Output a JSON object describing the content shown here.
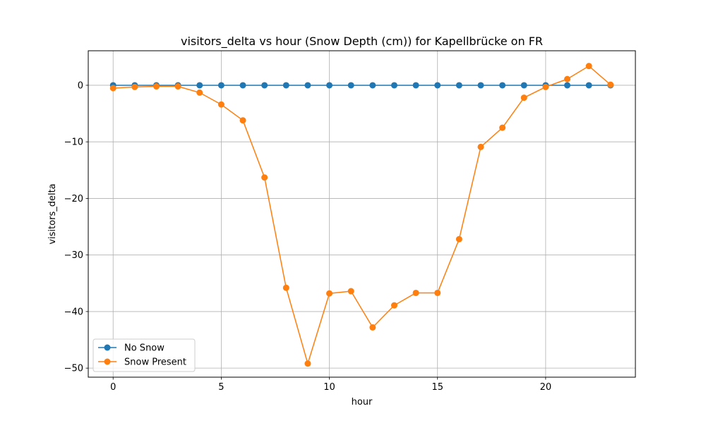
{
  "chart_data": {
    "type": "line",
    "title": "visitors_delta vs hour (Snow Depth (cm)) for Kapellbrücke on FR",
    "xlabel": "hour",
    "ylabel": "visitors_delta",
    "xlim": [
      -1.15,
      24.15
    ],
    "ylim": [
      -51.6,
      6.1
    ],
    "xticks": [
      0,
      5,
      10,
      15,
      20
    ],
    "yticks": [
      0,
      -10,
      -20,
      -30,
      -40,
      -50
    ],
    "xtick_labels": [
      "0",
      "5",
      "10",
      "15",
      "20"
    ],
    "ytick_labels": [
      "0",
      "−10",
      "−20",
      "−30",
      "−40",
      "−50"
    ],
    "grid": true,
    "legend_position": "lower-left",
    "x": [
      0,
      1,
      2,
      3,
      4,
      5,
      6,
      7,
      8,
      9,
      10,
      11,
      12,
      13,
      14,
      15,
      16,
      17,
      18,
      19,
      20,
      21,
      22,
      23
    ],
    "series": [
      {
        "name": "No Snow",
        "color": "#1f77b4",
        "marker": "circle",
        "values": [
          0,
          0,
          0,
          0,
          0,
          0,
          0,
          0,
          0,
          0,
          0,
          0,
          0,
          0,
          0,
          0,
          0,
          0,
          0,
          0,
          0,
          0,
          0,
          0
        ]
      },
      {
        "name": "Snow Present",
        "color": "#ff7f0e",
        "marker": "circle",
        "values": [
          -0.5,
          -0.3,
          -0.2,
          -0.2,
          -1.3,
          -3.4,
          -6.2,
          -16.3,
          -35.8,
          -49.2,
          -36.8,
          -36.4,
          -42.8,
          -38.9,
          -36.7,
          -36.7,
          -27.2,
          -10.9,
          -7.5,
          -2.2,
          -0.3,
          1.1,
          3.4,
          0.1
        ]
      }
    ]
  }
}
